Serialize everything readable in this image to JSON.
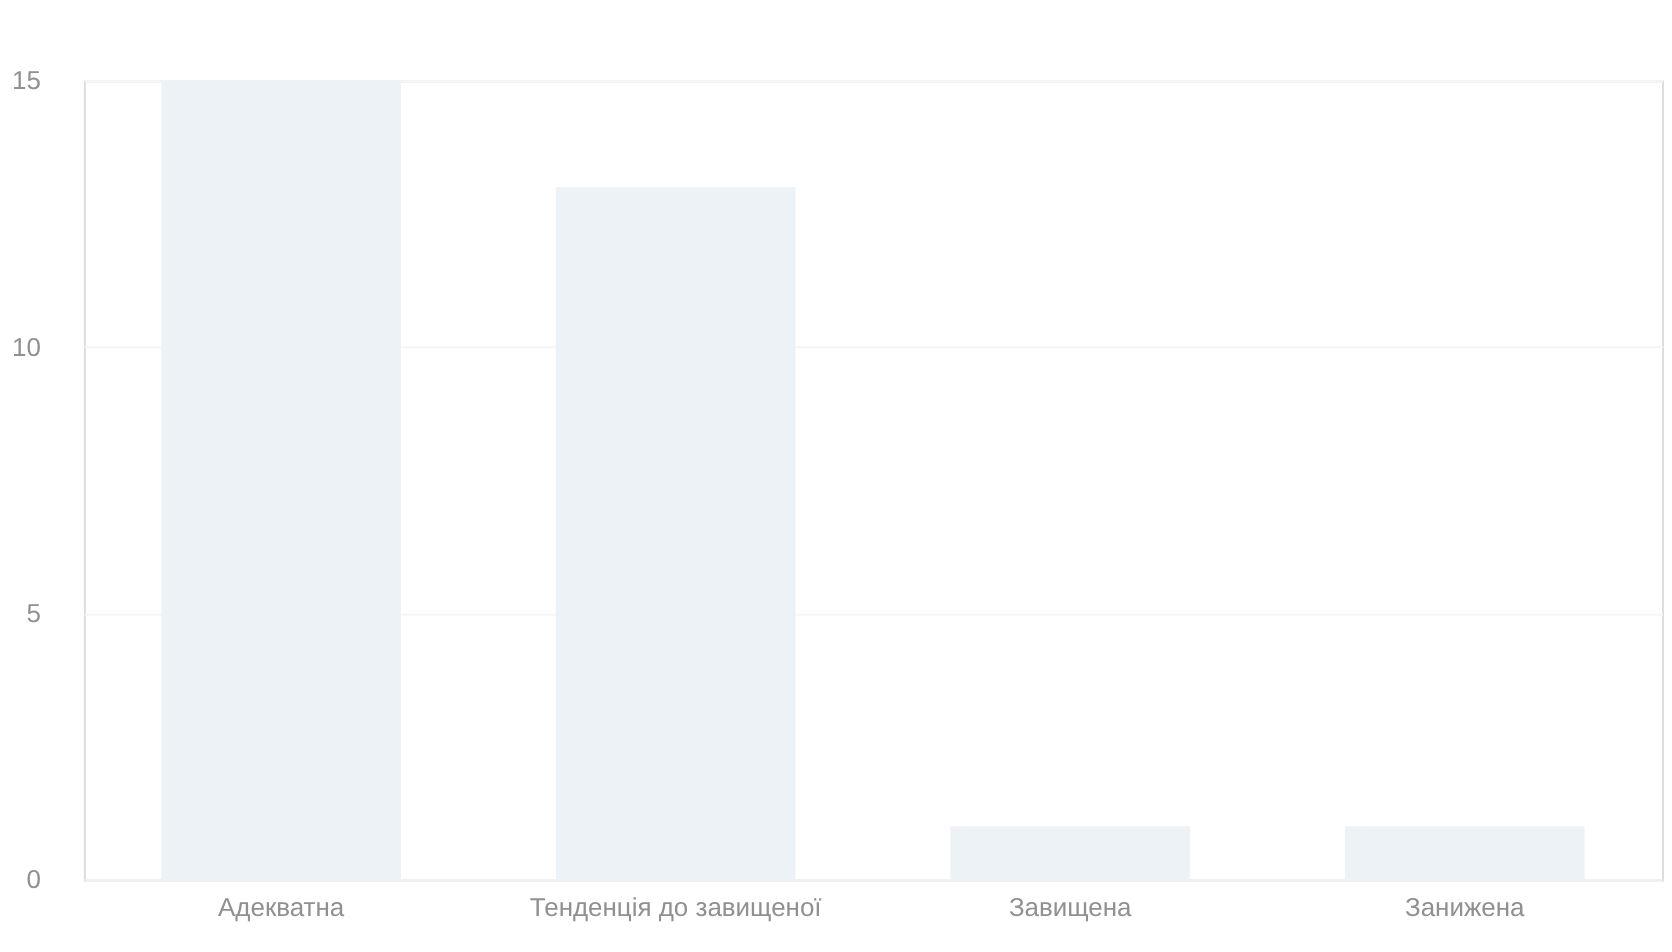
{
  "chart_data": {
    "type": "bar",
    "categories": [
      "Адекватна",
      "Тенденція до завищеної",
      "Завищена",
      "Занижена"
    ],
    "values": [
      15,
      13,
      1,
      1
    ],
    "color": "#edf2f6",
    "ylim": [
      0,
      15
    ],
    "yticks": [
      0,
      5,
      10,
      15
    ],
    "grid": "y"
  }
}
